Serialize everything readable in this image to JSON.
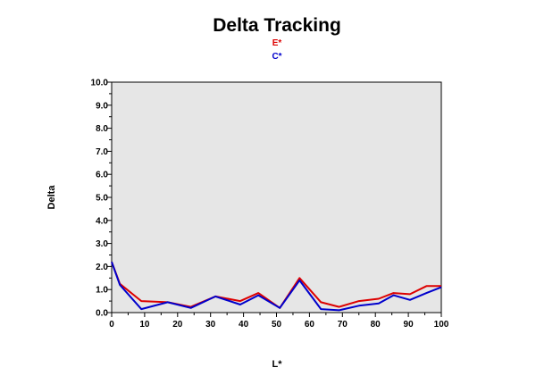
{
  "chart_data": {
    "type": "line",
    "title": "Delta Tracking",
    "xlabel": "L*",
    "ylabel": "Delta",
    "xlim": [
      0,
      100
    ],
    "ylim": [
      0,
      10
    ],
    "x_ticks": [
      "0",
      "10",
      "20",
      "30",
      "40",
      "50",
      "60",
      "70",
      "80",
      "90",
      "100"
    ],
    "y_ticks": [
      "0.0",
      "1.0",
      "2.0",
      "3.0",
      "4.0",
      "5.0",
      "6.0",
      "7.0",
      "8.0",
      "9.0",
      "10.0"
    ],
    "grid": false,
    "legend_position": "top-center",
    "plot_background": "#e6e6e6",
    "series": [
      {
        "name": "E*",
        "color": "#dd0000",
        "x": [
          0,
          2.5,
          9,
          17,
          24,
          31.5,
          39,
          44.5,
          51,
          57,
          63.5,
          69,
          75,
          81,
          85.5,
          90.5,
          95.5,
          100
        ],
        "y": [
          2.2,
          1.25,
          0.5,
          0.45,
          0.25,
          0.7,
          0.5,
          0.85,
          0.2,
          1.5,
          0.45,
          0.25,
          0.5,
          0.6,
          0.85,
          0.8,
          1.15,
          1.15
        ]
      },
      {
        "name": "C*",
        "color": "#0000cc",
        "x": [
          0,
          2.5,
          9,
          17,
          24,
          31.5,
          39,
          44.5,
          51,
          57,
          63.5,
          69,
          75,
          81,
          85.5,
          90.5,
          95.5,
          100
        ],
        "y": [
          2.2,
          1.2,
          0.15,
          0.45,
          0.2,
          0.7,
          0.35,
          0.75,
          0.2,
          1.4,
          0.15,
          0.1,
          0.3,
          0.4,
          0.75,
          0.55,
          0.85,
          1.1
        ]
      }
    ]
  }
}
